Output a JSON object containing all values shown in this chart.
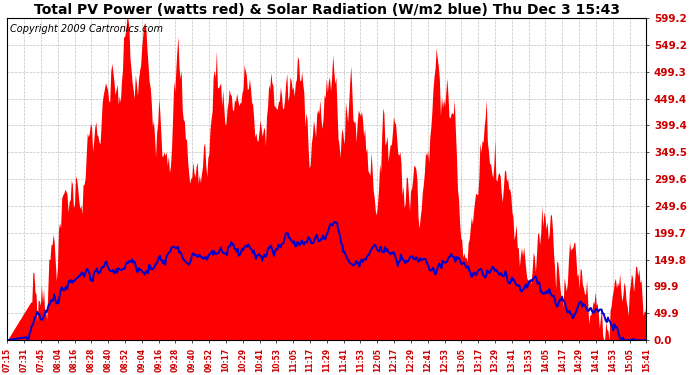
{
  "title": "Total PV Power (watts red) & Solar Radiation (W/m2 blue) Thu Dec 3 15:43",
  "copyright_text": "Copyright 2009 Cartronics.com",
  "y_ticks": [
    0.0,
    49.9,
    99.9,
    149.8,
    199.7,
    249.6,
    299.6,
    349.5,
    399.4,
    449.4,
    499.3,
    549.2,
    599.2
  ],
  "x_tick_labels": [
    "07:15",
    "07:31",
    "07:45",
    "08:04",
    "08:16",
    "08:28",
    "08:40",
    "08:52",
    "09:04",
    "09:16",
    "09:28",
    "09:40",
    "09:52",
    "10:17",
    "10:29",
    "10:41",
    "10:53",
    "11:05",
    "11:17",
    "11:29",
    "11:41",
    "11:53",
    "12:05",
    "12:17",
    "12:29",
    "12:41",
    "12:53",
    "13:05",
    "13:17",
    "13:29",
    "13:41",
    "13:53",
    "14:05",
    "14:17",
    "14:29",
    "14:41",
    "14:53",
    "15:05",
    "15:41"
  ],
  "ymax": 599.2,
  "ymin": 0.0,
  "fill_color": "#FF0000",
  "line_color": "#0000CC",
  "bg_color": "#FFFFFF",
  "plot_bg_color": "#FFFFFF",
  "grid_color": "#BBBBBB",
  "title_fontsize": 10,
  "copyright_fontsize": 7,
  "tick_label_color": "#CC0000",
  "ytick_label_color": "#CC0000"
}
